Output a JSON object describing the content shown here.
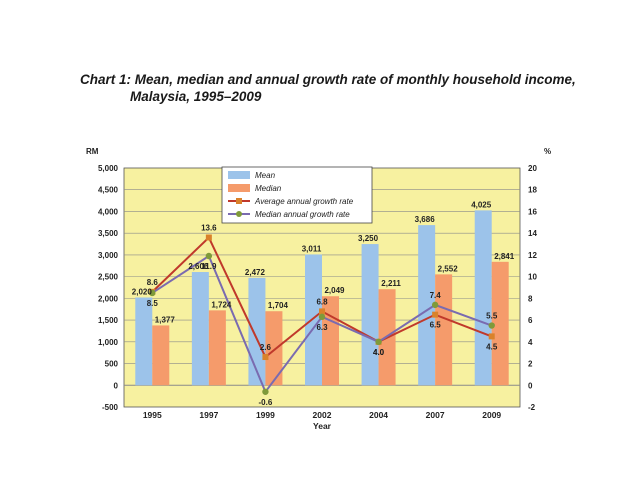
{
  "title": {
    "line1": "Chart 1: Mean, median and annual growth rate of monthly household income,",
    "line2": "Malaysia, 1995–2009"
  },
  "chart_data": {
    "type": "bar",
    "title": "Chart 1: Mean, median and annual growth rate of monthly household income, Malaysia, 1995–2009",
    "xlabel": "Year",
    "ylabel": "RM",
    "y2label": "%",
    "categories": [
      "1995",
      "1997",
      "1999",
      "2002",
      "2004",
      "2007",
      "2009"
    ],
    "ylim": [
      -500,
      5000
    ],
    "y_ticks": [
      "-500",
      "0",
      "500",
      "1,000",
      "1,500",
      "2,000",
      "2,500",
      "3,000",
      "3,500",
      "4,000",
      "4,500",
      "5,000"
    ],
    "y2lim": [
      -2,
      20
    ],
    "y2_ticks": [
      "-2",
      "0",
      "2",
      "4",
      "6",
      "8",
      "10",
      "12",
      "14",
      "16",
      "18",
      "20"
    ],
    "grid": true,
    "legend_position": "top-center",
    "series": [
      {
        "name": "Mean",
        "kind": "bar",
        "axis": "left",
        "color": "#9cc3ea",
        "values": [
          2020,
          2606,
          2472,
          3011,
          3250,
          3686,
          4025
        ],
        "labels": [
          "2,020",
          "2,606",
          "2,472",
          "3,011",
          "3,250",
          "3,686",
          "4,025"
        ]
      },
      {
        "name": "Median",
        "kind": "bar",
        "axis": "left",
        "color": "#f59b6b",
        "values": [
          1377,
          1724,
          1704,
          2049,
          2211,
          2552,
          2841
        ],
        "labels": [
          "1,377",
          "1,724",
          "1,704",
          "2,049",
          "2,211",
          "2,552",
          "2,841"
        ]
      },
      {
        "name": "Average annual growth rate",
        "kind": "line",
        "axis": "right",
        "color": "#c0392b",
        "marker_color": "#d9822b",
        "values": [
          8.6,
          13.6,
          2.6,
          6.8,
          4.0,
          6.5,
          4.5
        ],
        "labels": [
          "8.6",
          "13.6",
          "2.6",
          "6.8",
          "4.0",
          "6.5",
          "4.5"
        ]
      },
      {
        "name": "Median annual growth rate",
        "kind": "line",
        "axis": "right",
        "color": "#7a6bb0",
        "marker_color": "#7f9a3a",
        "values": [
          8.5,
          11.9,
          -0.6,
          6.3,
          4.0,
          7.4,
          5.5
        ],
        "labels": [
          "8.5",
          "11.9",
          "-0.6",
          "6.3",
          "4.0",
          "7.4",
          "5.5"
        ]
      }
    ],
    "plot_background": "#f7f1a0",
    "grid_color": "#8a8a8a"
  }
}
